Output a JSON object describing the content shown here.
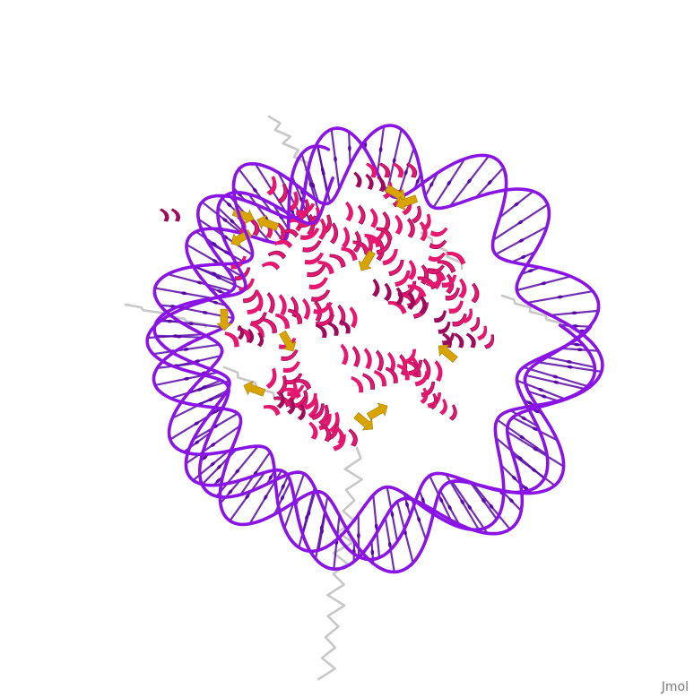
{
  "viewer": {
    "watermark": "Jmol",
    "background": "#ffffff"
  },
  "structure": {
    "dna_color": "#8a14e6",
    "dna_base_color": "#5a0aa8",
    "helix_color": "#e6176e",
    "helix_dark_color": "#9e0a5c",
    "strand_color": "#d9a300",
    "coil_color": "#c8c8c8"
  }
}
